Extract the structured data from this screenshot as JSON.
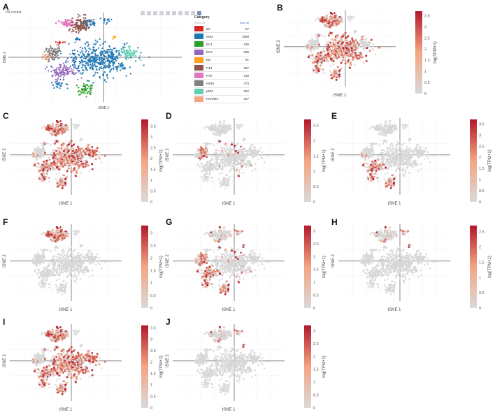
{
  "panelA": {
    "label": "A",
    "subtitle": "P8 control",
    "xlabel": "tSNE 1",
    "ylabel": "tSNE 2",
    "legend_title": "Category",
    "show_all": "Show all",
    "hide_all": "Hide all",
    "categories": [
      {
        "name": "BC",
        "count": "57",
        "color": "#d62728"
      },
      {
        "name": "eDM",
        "count": "1869",
        "color": "#1f77b4"
      },
      {
        "name": "EC1",
        "count": "246",
        "color": "#2ca02c"
      },
      {
        "name": "EC2",
        "count": "536",
        "color": "#9467bd"
      },
      {
        "name": "Epi",
        "count": "91",
        "color": "#ff9f1a"
      },
      {
        "name": "Fib1",
        "count": "607",
        "color": "#8c564b"
      },
      {
        "name": "FAS",
        "count": "239",
        "color": "#e377c2"
      },
      {
        "name": "mDM",
        "count": "473",
        "color": "#7f7f7f"
      },
      {
        "name": "pDM",
        "count": "252",
        "color": "#5fd0b0"
      },
      {
        "name": "PC/SMC",
        "count": "107",
        "color": "#f4a582"
      }
    ]
  },
  "common": {
    "xlabel": "tSNE 1",
    "ylabel": "tSNE 2",
    "colorbar_label": "log(TPM+1)"
  },
  "colors": {
    "low": "#d9d9d9",
    "mid": "#f4a582",
    "high": "#b2182b",
    "grey": "#d7d7d7"
  },
  "chart_data": [
    {
      "id": "A",
      "type": "scatter",
      "xlabel": "tSNE 1",
      "ylabel": "tSNE 2",
      "legend": "Category"
    },
    {
      "id": "B",
      "type": "scatter",
      "colorbar_ticks": [
        "0",
        "0.5",
        "1",
        "1.5",
        "2",
        "2.5",
        "3",
        "3.5"
      ],
      "colorbar_range": [
        0,
        3.7
      ],
      "xlabel": "tSNE 1",
      "ylabel": "tSNE 2",
      "colorbar_label": "log(TPM+1)",
      "highlight": [
        "top",
        "bottom-left",
        "center"
      ]
    },
    {
      "id": "C",
      "type": "scatter",
      "colorbar_ticks": [
        "0",
        "0.5",
        "1",
        "1.5",
        "2",
        "2.5",
        "3",
        "3.5"
      ],
      "colorbar_range": [
        0,
        3.8
      ],
      "xlabel": "tSNE 1",
      "ylabel": "tSNE 2",
      "colorbar_label": "log(TPM+1)",
      "highlight": [
        "top",
        "bottom-left",
        "center",
        "right"
      ]
    },
    {
      "id": "D",
      "type": "scatter",
      "colorbar_ticks": [
        "0",
        "0.5",
        "1",
        "1.5",
        "2",
        "2.5"
      ],
      "colorbar_range": [
        0,
        2.7
      ],
      "xlabel": "tSNE 1",
      "ylabel": "tSNE 2",
      "colorbar_label": "log(TPM+1)",
      "highlight": [
        "center-sparse"
      ]
    },
    {
      "id": "E",
      "type": "scatter",
      "colorbar_ticks": [
        "0",
        "0.5",
        "1",
        "1.5",
        "2",
        "2.5",
        "3",
        "3.5"
      ],
      "colorbar_range": [
        0,
        3.7
      ],
      "xlabel": "tSNE 1",
      "ylabel": "tSNE 2",
      "colorbar_label": "log(TPM+1)",
      "highlight": [
        "bottom-left"
      ]
    },
    {
      "id": "F",
      "type": "scatter",
      "colorbar_ticks": [
        "0",
        "0.5",
        "1",
        "1.5",
        "2",
        "2.5",
        "3"
      ],
      "colorbar_range": [
        0,
        3.3
      ],
      "xlabel": "tSNE 1",
      "ylabel": "tSNE 2",
      "colorbar_label": "log(TPM+1)",
      "highlight": [
        "top"
      ]
    },
    {
      "id": "G",
      "type": "scatter",
      "colorbar_ticks": [
        "0",
        "0.5",
        "1",
        "1.5",
        "2",
        "2.5",
        "3"
      ],
      "colorbar_range": [
        0,
        3.2
      ],
      "xlabel": "tSNE 1",
      "ylabel": "tSNE 2",
      "colorbar_label": "log(TPM+1)",
      "highlight": [
        "top-sparse",
        "bottom-left",
        "center-sparse"
      ]
    },
    {
      "id": "H",
      "type": "scatter",
      "colorbar_ticks": [
        "0",
        "0.5",
        "1",
        "1.5",
        "2",
        "2.5"
      ],
      "colorbar_range": [
        0,
        2.7
      ],
      "xlabel": "tSNE 1",
      "ylabel": "tSNE 2",
      "colorbar_label": "log(TPM+1)",
      "highlight": [
        "top-sparse"
      ]
    },
    {
      "id": "I",
      "type": "scatter",
      "colorbar_ticks": [
        "0",
        "0.5",
        "1",
        "1.5",
        "2",
        "2.5",
        "3",
        "3.5"
      ],
      "colorbar_range": [
        0,
        3.6
      ],
      "xlabel": "tSNE 1",
      "ylabel": "tSNE 2",
      "colorbar_label": "log(TPM+1)",
      "highlight": [
        "top",
        "bottom-left",
        "center",
        "right"
      ]
    },
    {
      "id": "J",
      "type": "scatter",
      "colorbar_ticks": [
        "0",
        "0.5",
        "1",
        "1.5",
        "2",
        "2.5",
        "3"
      ],
      "colorbar_range": [
        0,
        3.2
      ],
      "xlabel": "tSNE 1",
      "ylabel": "tSNE 2",
      "colorbar_label": "log(TPM+1)",
      "highlight": [
        "top-sparse"
      ]
    }
  ]
}
